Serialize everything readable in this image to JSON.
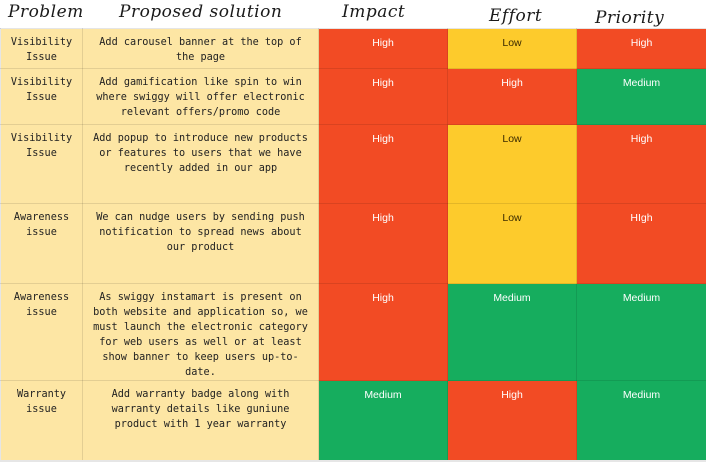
{
  "header": {
    "problem": "Problem",
    "solution": "Proposed solution",
    "impact": "Impact",
    "effort": "Effort",
    "priority": "Priority"
  },
  "colors": {
    "high": "#f24b24",
    "medium": "#16ad5e",
    "low": "#fdcb2c",
    "text_cell": "#fde6a4"
  },
  "rows": [
    {
      "problem": "Visibility Issue",
      "solution": "Add carousel banner at the top of the page",
      "impact": "High",
      "effort": "Low",
      "priority": "High"
    },
    {
      "problem": "Visibility Issue",
      "solution": "Add gamification like spin to win where swiggy will offer electronic relevant offers/promo code",
      "impact": "High",
      "effort": "High",
      "priority": "Medium"
    },
    {
      "problem": "Visibility Issue",
      "solution": "Add popup to introduce new products or features to users that we have recently added in our app",
      "impact": "High",
      "effort": "Low",
      "priority": "High"
    },
    {
      "problem": "Awareness issue",
      "solution": "We can nudge users by sending push notification to spread news about our product",
      "impact": "High",
      "effort": "Low",
      "priority": "HIgh"
    },
    {
      "problem": "Awareness issue",
      "solution": "As swiggy instamart is present on both website and application so, we must launch the electronic category for web users as well or at least show banner to keep users up-to-date.",
      "impact": "High",
      "effort": "Medium",
      "priority": "Medium"
    },
    {
      "problem": "Warranty issue",
      "solution": "Add warranty badge along with warranty details like guniune product with 1 year warranty",
      "impact": "Medium",
      "effort": "High",
      "priority": "Medium"
    }
  ]
}
